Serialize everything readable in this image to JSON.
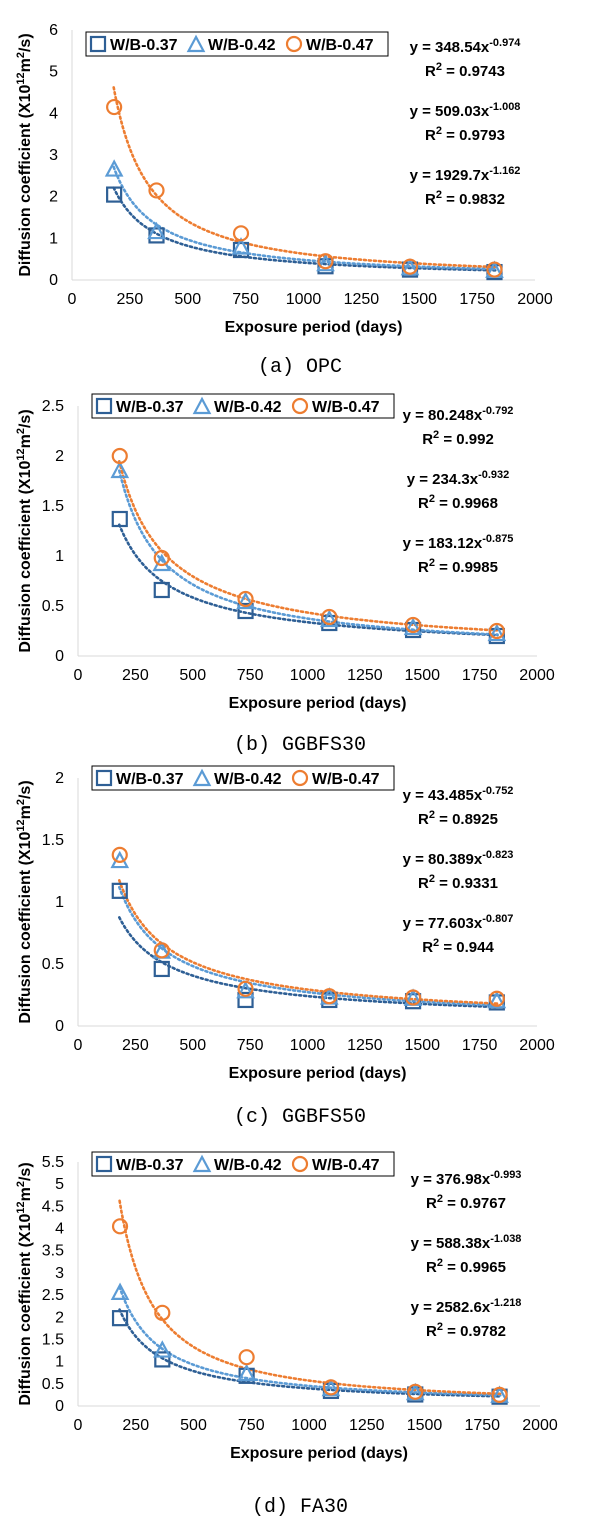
{
  "chart_data": [
    {
      "type": "scatter",
      "caption": "(a) OPC",
      "xlabel": "Exposure period (days)",
      "ylabel": "Diffusion coefficient (X10",
      "ylabel_sup": "12",
      "ylabel_mid": "m",
      "ylabel_sup2": "2",
      "ylabel_end": "/s)",
      "xlim": [
        0,
        2000
      ],
      "xticks": [
        0,
        250,
        500,
        750,
        1000,
        1250,
        1500,
        1750,
        2000
      ],
      "ylim": [
        0,
        6
      ],
      "yticks": [
        0,
        1,
        2,
        3,
        4,
        5,
        6
      ],
      "legend_position": "top-left",
      "trendline": "power (dotted)",
      "series": [
        {
          "name": "W/B-0.37",
          "marker": "square",
          "color": "#2E5F95",
          "x": [
            182,
            365,
            730,
            1095,
            1460,
            1825
          ],
          "y": [
            2.05,
            1.07,
            0.72,
            0.33,
            0.25,
            0.19
          ],
          "fit_a": 348.54,
          "fit_b": -0.974
        },
        {
          "name": "W/B-0.42",
          "marker": "triangle",
          "color": "#5B9BD5",
          "x": [
            182,
            365,
            730,
            1095,
            1460,
            1825
          ],
          "y": [
            2.65,
            1.15,
            0.78,
            0.38,
            0.28,
            0.22
          ],
          "fit_a": 509.03,
          "fit_b": -1.008
        },
        {
          "name": "W/B-0.47",
          "marker": "circle",
          "color": "#ED7D31",
          "x": [
            182,
            365,
            730,
            1095,
            1460,
            1825
          ],
          "y": [
            4.15,
            2.15,
            1.12,
            0.45,
            0.32,
            0.25
          ],
          "fit_a": 1929.7,
          "fit_b": -1.162
        }
      ],
      "equations": [
        {
          "eq_base": "y = 348.54x",
          "eq_exp": "-0.974",
          "r2_base": "R",
          "r2_sup": "2",
          "r2_val": " = 0.9743"
        },
        {
          "eq_base": "y = 509.03x",
          "eq_exp": "-1.008",
          "r2_base": "R",
          "r2_sup": "2",
          "r2_val": " = 0.9793"
        },
        {
          "eq_base": "y = 1929.7x",
          "eq_exp": "-1.162",
          "r2_base": "R",
          "r2_sup": "2",
          "r2_val": " = 0.9832"
        }
      ]
    },
    {
      "type": "scatter",
      "caption": "(b) GGBFS30",
      "xlabel": "Exposure period (days)",
      "ylabel": "Diffusion coefficient (X10",
      "ylabel_sup": "12",
      "ylabel_mid": "m",
      "ylabel_sup2": "2",
      "ylabel_end": "/s)",
      "xlim": [
        0,
        2000
      ],
      "xticks": [
        0,
        250,
        500,
        750,
        1000,
        1250,
        1500,
        1750,
        2000
      ],
      "ylim": [
        0,
        2.5
      ],
      "yticks": [
        0,
        0.5,
        1,
        1.5,
        2,
        2.5
      ],
      "legend_position": "top-left",
      "trendline": "power (dotted)",
      "series": [
        {
          "name": "W/B-0.37",
          "marker": "square",
          "color": "#2E5F95",
          "x": [
            182,
            365,
            730,
            1095,
            1460,
            1825
          ],
          "y": [
            1.37,
            0.66,
            0.45,
            0.33,
            0.26,
            0.2
          ],
          "fit_a": 80.248,
          "fit_b": -0.792
        },
        {
          "name": "W/B-0.42",
          "marker": "triangle",
          "color": "#5B9BD5",
          "x": [
            182,
            365,
            730,
            1095,
            1460,
            1825
          ],
          "y": [
            1.85,
            0.92,
            0.54,
            0.36,
            0.28,
            0.22
          ],
          "fit_a": 234.3,
          "fit_b": -0.932
        },
        {
          "name": "W/B-0.47",
          "marker": "circle",
          "color": "#ED7D31",
          "x": [
            182,
            365,
            730,
            1095,
            1460,
            1825
          ],
          "y": [
            2.0,
            0.98,
            0.57,
            0.39,
            0.31,
            0.25
          ],
          "fit_a": 183.12,
          "fit_b": -0.875
        }
      ],
      "equations": [
        {
          "eq_base": "y = 80.248x",
          "eq_exp": "-0.792",
          "r2_base": "R",
          "r2_sup": "2",
          "r2_val": " = 0.992"
        },
        {
          "eq_base": "y = 234.3x",
          "eq_exp": "-0.932",
          "r2_base": "R",
          "r2_sup": "2",
          "r2_val": " = 0.9968"
        },
        {
          "eq_base": "y = 183.12x",
          "eq_exp": "-0.875",
          "r2_base": "R",
          "r2_sup": "2",
          "r2_val": " = 0.9985"
        }
      ]
    },
    {
      "type": "scatter",
      "caption": "(c) GGBFS50",
      "xlabel": "Exposure period (days)",
      "ylabel": "Diffusion coefficient (X10",
      "ylabel_sup": "12",
      "ylabel_mid": "m",
      "ylabel_sup2": "2",
      "ylabel_end": "/s)",
      "xlim": [
        0,
        2000
      ],
      "xticks": [
        0,
        250,
        500,
        750,
        1000,
        1250,
        1500,
        1750,
        2000
      ],
      "ylim": [
        0,
        2
      ],
      "yticks": [
        0,
        0.5,
        1,
        1.5,
        2
      ],
      "legend_position": "top-left",
      "trendline": "power (dotted)",
      "series": [
        {
          "name": "W/B-0.37",
          "marker": "square",
          "color": "#2E5F95",
          "x": [
            182,
            365,
            730,
            1095,
            1460,
            1825
          ],
          "y": [
            1.09,
            0.46,
            0.21,
            0.21,
            0.2,
            0.19
          ],
          "fit_a": 43.485,
          "fit_b": -0.752
        },
        {
          "name": "W/B-0.42",
          "marker": "triangle",
          "color": "#5B9BD5",
          "x": [
            182,
            365,
            730,
            1095,
            1460,
            1825
          ],
          "y": [
            1.33,
            0.6,
            0.28,
            0.23,
            0.22,
            0.2
          ],
          "fit_a": 80.389,
          "fit_b": -0.823
        },
        {
          "name": "W/B-0.47",
          "marker": "circle",
          "color": "#ED7D31",
          "x": [
            182,
            365,
            730,
            1095,
            1460,
            1825
          ],
          "y": [
            1.38,
            0.61,
            0.3,
            0.24,
            0.23,
            0.22
          ],
          "fit_a": 77.603,
          "fit_b": -0.807
        }
      ],
      "equations": [
        {
          "eq_base": "y = 43.485x",
          "eq_exp": "-0.752",
          "r2_base": "R",
          "r2_sup": "2",
          "r2_val": " = 0.8925"
        },
        {
          "eq_base": "y = 80.389x",
          "eq_exp": "-0.823",
          "r2_base": "R",
          "r2_sup": "2",
          "r2_val": " = 0.9331"
        },
        {
          "eq_base": "y = 77.603x",
          "eq_exp": "-0.807",
          "r2_base": "R",
          "r2_sup": "2",
          "r2_val": " = 0.944"
        }
      ]
    },
    {
      "type": "scatter",
      "caption": "(d) FA30",
      "xlabel": "Exposure period (days)",
      "ylabel": "Diffusion coefficient (X10",
      "ylabel_sup": "12",
      "ylabel_mid": "m",
      "ylabel_sup2": "2",
      "ylabel_end": "/s)",
      "xlim": [
        0,
        2000
      ],
      "xticks": [
        0,
        250,
        500,
        750,
        1000,
        1250,
        1500,
        1750,
        2000
      ],
      "ylim": [
        0,
        5.5
      ],
      "yticks": [
        0,
        0.5,
        1,
        1.5,
        2,
        2.5,
        3,
        3.5,
        4,
        4.5,
        5,
        5.5
      ],
      "legend_position": "top-left",
      "trendline": "power (dotted)",
      "series": [
        {
          "name": "W/B-0.37",
          "marker": "square",
          "color": "#2E5F95",
          "x": [
            182,
            365,
            730,
            1095,
            1460,
            1825
          ],
          "y": [
            1.98,
            1.05,
            0.68,
            0.34,
            0.26,
            0.21
          ],
          "fit_a": 376.98,
          "fit_b": -0.993
        },
        {
          "name": "W/B-0.42",
          "marker": "triangle",
          "color": "#5B9BD5",
          "x": [
            182,
            365,
            730,
            1095,
            1460,
            1825
          ],
          "y": [
            2.55,
            1.25,
            0.72,
            0.38,
            0.29,
            0.23
          ],
          "fit_a": 588.38,
          "fit_b": -1.038
        },
        {
          "name": "W/B-0.47",
          "marker": "circle",
          "color": "#ED7D31",
          "x": [
            182,
            365,
            730,
            1095,
            1460,
            1825
          ],
          "y": [
            4.05,
            2.1,
            1.1,
            0.42,
            0.32,
            0.25
          ],
          "fit_a": 2582.6,
          "fit_b": -1.218
        }
      ],
      "equations": [
        {
          "eq_base": "y = 376.98x",
          "eq_exp": "-0.993",
          "r2_base": "R",
          "r2_sup": "2",
          "r2_val": " = 0.9767"
        },
        {
          "eq_base": "y = 588.38x",
          "eq_exp": "-1.038",
          "r2_base": "R",
          "r2_sup": "2",
          "r2_val": " = 0.9965"
        },
        {
          "eq_base": "y = 2582.6x",
          "eq_exp": "-1.218",
          "r2_base": "R",
          "r2_sup": "2",
          "r2_val": " = 0.9782"
        }
      ]
    }
  ]
}
